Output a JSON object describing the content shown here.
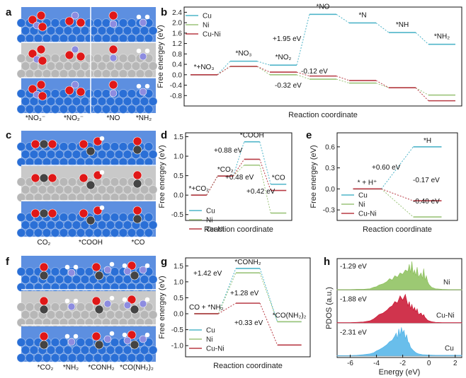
{
  "panels": {
    "a": {
      "label": "a",
      "captions": [
        "*NO₃⁻",
        "*NO₂⁻",
        "*NO",
        "*NH₂"
      ]
    },
    "c": {
      "label": "c",
      "captions": [
        "CO₂",
        "*COOH",
        "*CO"
      ]
    },
    "f": {
      "label": "f",
      "captions": [
        "*CO₂",
        "*NH₂",
        "*CONH₂",
        "*CO(NH₂)₂"
      ]
    }
  },
  "colors": {
    "Cu": "#4fb5c9",
    "Ni": "#9bc47a",
    "Cu-Ni": "#b83a44",
    "axis": "#111111",
    "ball_blue": "#2a6fd6",
    "ball_grey": "#b7b7b7",
    "ball_red": "#e01818",
    "ball_N": "#8d8ce0",
    "ball_C": "#444444"
  },
  "chart_data": [
    {
      "id": "b",
      "label": "b",
      "type": "line",
      "ylabel": "Free energey (eV)",
      "xlabel": "Reaction coordinate",
      "ylim": [
        -1.2,
        2.6
      ],
      "yticks": [
        -0.8,
        -0.4,
        0.0,
        0.4,
        0.8,
        1.2,
        1.6,
        2.0,
        2.4
      ],
      "steps": [
        "*+NO₃",
        "*NO₃",
        "*NO₂",
        "*NO",
        "*N",
        "*NH",
        "*NH₂"
      ],
      "legend": [
        "Cu",
        "Ni",
        "Cu-Ni"
      ],
      "series": [
        {
          "name": "Cu",
          "values": [
            0.0,
            0.52,
            0.37,
            2.32,
            1.99,
            1.62,
            1.17
          ]
        },
        {
          "name": "Ni",
          "values": [
            0.0,
            0.32,
            0.0,
            -0.17,
            -0.32,
            -0.5,
            -0.78
          ]
        },
        {
          "name": "Cu-Ni",
          "values": [
            0.0,
            0.32,
            0.1,
            -0.05,
            -0.22,
            -0.5,
            -1.0
          ]
        }
      ],
      "annotations": [
        "+1.95 eV",
        "-0.12 eV",
        "-0.32 eV"
      ]
    },
    {
      "id": "d",
      "label": "d",
      "type": "line",
      "ylabel": "Free energey (eV)",
      "xlabel": "Reaction coordinate",
      "ylim": [
        -0.65,
        1.6
      ],
      "yticks": [
        -0.5,
        0.0,
        0.5,
        1.0,
        1.5
      ],
      "steps": [
        "*+CO₂",
        "*CO₂",
        "*COOH",
        "*CO"
      ],
      "legend": [
        "Cu",
        "Ni",
        "Cu-Ni"
      ],
      "series": [
        {
          "name": "Cu",
          "values": [
            0.0,
            0.49,
            1.37,
            0.28
          ]
        },
        {
          "name": "Ni",
          "values": [
            0.0,
            0.49,
            0.77,
            -0.46
          ]
        },
        {
          "name": "Cu-Ni",
          "values": [
            0.0,
            0.49,
            0.92,
            0.12
          ]
        }
      ],
      "annotations": [
        "+0.88 eV",
        "+0.48 eV",
        "+0.42 eV"
      ]
    },
    {
      "id": "e",
      "label": "e",
      "type": "line",
      "ylabel": "Free energey (eV)",
      "xlabel": "Reaction coordinate",
      "ylim": [
        -0.45,
        0.8
      ],
      "yticks": [
        -0.3,
        0.0,
        0.3,
        0.6
      ],
      "steps": [
        "* + H⁺",
        "*H"
      ],
      "legend": [
        "Cu",
        "Ni",
        "Cu-Ni"
      ],
      "series": [
        {
          "name": "Cu",
          "values": [
            0.0,
            0.6
          ]
        },
        {
          "name": "Ni",
          "values": [
            0.0,
            -0.4
          ]
        },
        {
          "name": "Cu-Ni",
          "values": [
            0.0,
            -0.17
          ]
        }
      ],
      "annotations": [
        "+0.60 eV",
        "-0.17 eV",
        "-0.40 eV"
      ]
    },
    {
      "id": "g",
      "label": "g",
      "type": "line",
      "ylabel": "Free energey (eV)",
      "xlabel": "Reaction coordinate",
      "ylim": [
        -1.35,
        1.75
      ],
      "yticks": [
        -1.0,
        -0.5,
        0.0,
        0.5,
        1.0,
        1.5
      ],
      "steps": [
        "CO + *NH₂",
        "*CONH₂",
        "*CO(NH₂)₂"
      ],
      "legend": [
        "Cu",
        "Ni",
        "Cu-Ni"
      ],
      "series": [
        {
          "name": "Cu",
          "values": [
            0.0,
            1.42,
            -0.25
          ]
        },
        {
          "name": "Ni",
          "values": [
            0.0,
            1.28,
            -0.25
          ]
        },
        {
          "name": "Cu-Ni",
          "values": [
            0.0,
            0.33,
            -0.98
          ]
        }
      ],
      "annotations": [
        "+1.42 eV",
        "+1.28 eV",
        "+0.33 eV"
      ]
    },
    {
      "id": "h",
      "label": "h",
      "type": "area",
      "ylabel": "PDOS (a.u.)",
      "xlabel": "Energy (eV)",
      "xlim": [
        -7,
        2.5
      ],
      "xticks": [
        -6,
        -4,
        -2,
        0,
        2
      ],
      "series": [
        {
          "name": "Ni",
          "d_band_center": "-1.29 eV",
          "x": [
            -7,
            -6.5,
            -6,
            -5.5,
            -5,
            -4.5,
            -4.2,
            -4,
            -3.8,
            -3.5,
            -3.2,
            -3,
            -2.8,
            -2.6,
            -2.4,
            -2.2,
            -2,
            -1.8,
            -1.6,
            -1.5,
            -1.4,
            -1.3,
            -1.2,
            -1.1,
            -1.0,
            -0.9,
            -0.8,
            -0.6,
            -0.5,
            -0.4,
            -0.3,
            -0.2,
            -0.1,
            0.0,
            0.2,
            0.5,
            1,
            1.5,
            2,
            2.5
          ],
          "values": [
            0.02,
            0.02,
            0.02,
            0.03,
            0.03,
            0.05,
            0.1,
            0.12,
            0.18,
            0.22,
            0.3,
            0.4,
            0.35,
            0.5,
            0.45,
            0.6,
            0.55,
            0.7,
            0.65,
            0.9,
            0.6,
            1.0,
            0.55,
            0.7,
            0.5,
            0.8,
            0.45,
            0.6,
            0.4,
            0.75,
            0.35,
            0.5,
            0.3,
            0.2,
            0.1,
            0.05,
            0.03,
            0.02,
            0.02,
            0.02
          ]
        },
        {
          "name": "Cu-Ni",
          "d_band_center": "-1.88 eV",
          "x": [
            -7,
            -6.5,
            -6,
            -5.5,
            -5,
            -4.5,
            -4.2,
            -4,
            -3.8,
            -3.5,
            -3.2,
            -3,
            -2.8,
            -2.6,
            -2.4,
            -2.2,
            -2,
            -1.8,
            -1.6,
            -1.5,
            -1.4,
            -1.3,
            -1.2,
            -1.1,
            -1.0,
            -0.9,
            -0.8,
            -0.6,
            -0.5,
            -0.4,
            -0.3,
            -0.2,
            -0.1,
            0.0,
            0.2,
            0.5,
            1,
            1.5,
            2,
            2.5
          ],
          "values": [
            0.02,
            0.02,
            0.02,
            0.03,
            0.04,
            0.08,
            0.15,
            0.22,
            0.3,
            0.35,
            0.45,
            0.55,
            0.6,
            0.75,
            0.7,
            0.95,
            0.8,
            1.0,
            0.6,
            0.75,
            0.5,
            0.65,
            0.45,
            0.55,
            0.4,
            0.5,
            0.3,
            0.35,
            0.25,
            0.3,
            0.2,
            0.15,
            0.1,
            0.08,
            0.05,
            0.03,
            0.02,
            0.02,
            0.02,
            0.02
          ]
        },
        {
          "name": "Cu",
          "d_band_center": "-2.31 eV",
          "x": [
            -7,
            -6.5,
            -6,
            -5.5,
            -5,
            -4.5,
            -4.2,
            -4,
            -3.8,
            -3.5,
            -3.2,
            -3,
            -2.8,
            -2.6,
            -2.5,
            -2.4,
            -2.3,
            -2.2,
            -2.1,
            -2.0,
            -1.9,
            -1.8,
            -1.7,
            -1.6,
            -1.5,
            -1.4,
            -1.2,
            -1.0,
            -0.8,
            -0.5,
            0.0,
            0.5,
            1,
            1.5,
            2,
            2.5
          ],
          "values": [
            0.02,
            0.02,
            0.02,
            0.03,
            0.05,
            0.08,
            0.12,
            0.18,
            0.22,
            0.3,
            0.4,
            0.5,
            0.55,
            0.7,
            0.8,
            0.6,
            0.95,
            0.7,
            1.0,
            0.8,
            0.9,
            0.6,
            0.75,
            0.5,
            0.45,
            0.3,
            0.2,
            0.12,
            0.08,
            0.05,
            0.04,
            0.03,
            0.03,
            0.03,
            0.03,
            0.03
          ]
        }
      ]
    }
  ]
}
